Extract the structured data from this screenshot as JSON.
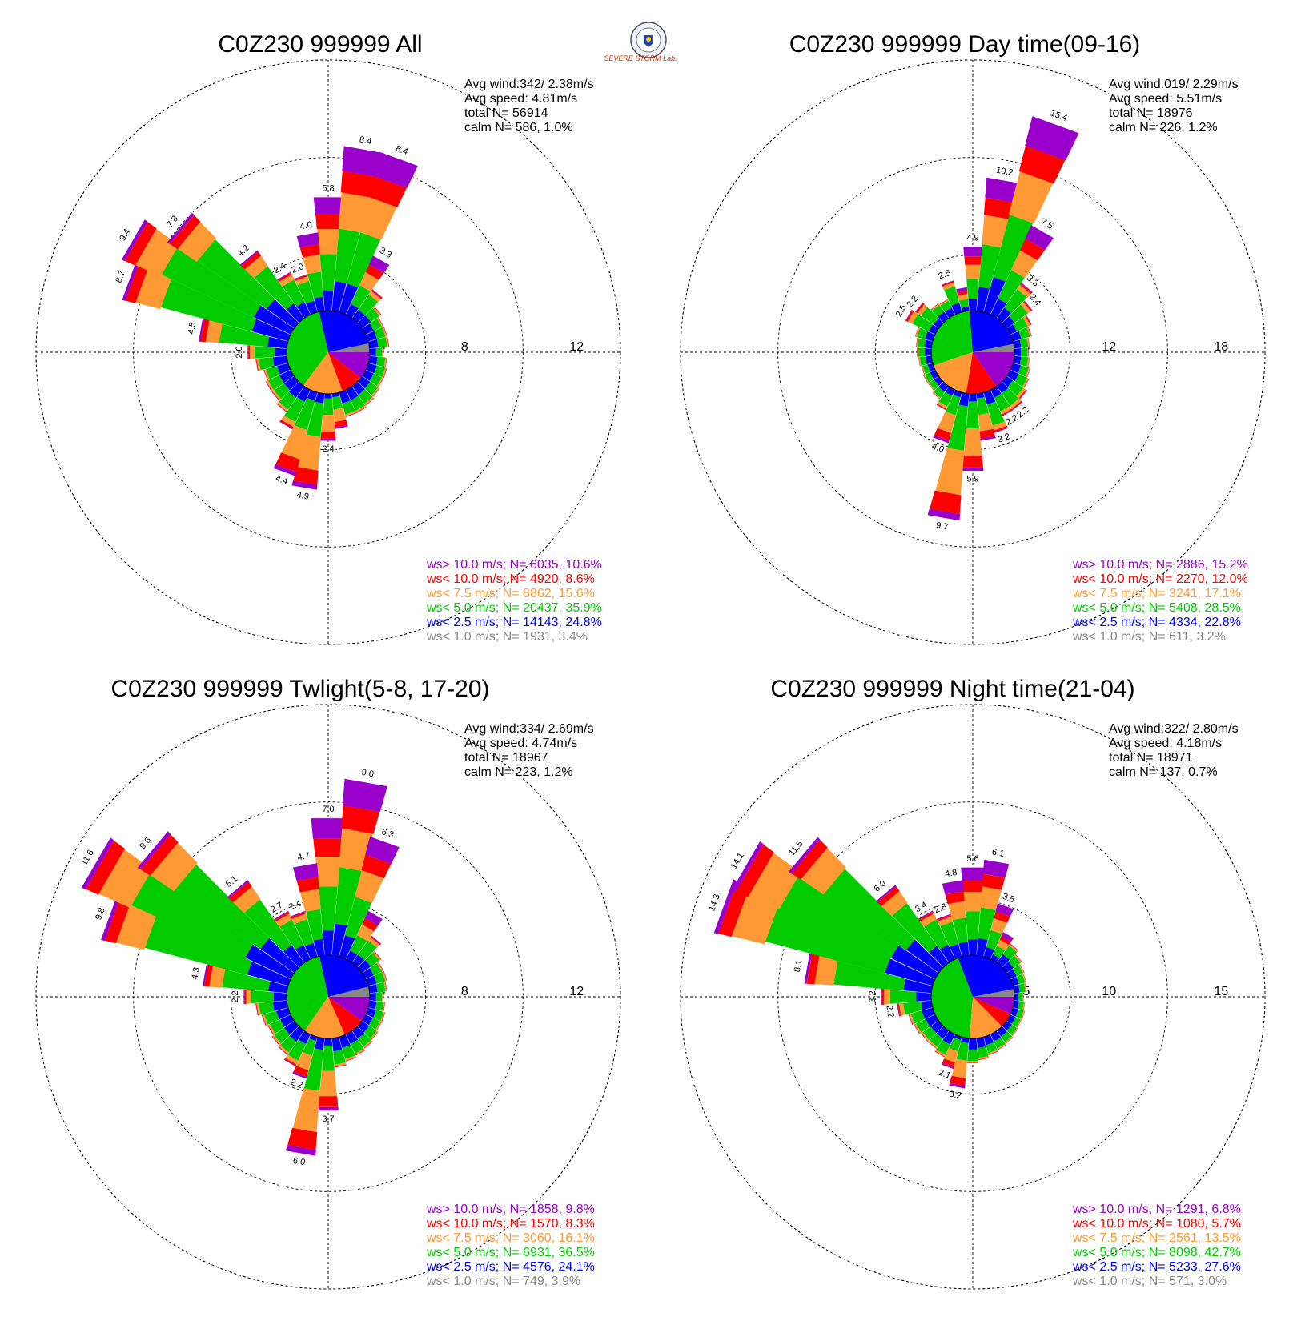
{
  "logo": {
    "name": "severe-storm-lab-logo",
    "text": "SEVERE STORM Lab."
  },
  "colors": {
    "gt10": "#9900cc",
    "lt10": "#ff0000",
    "lt75": "#ff9933",
    "lt5": "#00cc00",
    "lt25": "#0000ff",
    "lt1": "#888888"
  },
  "chart_data": [
    {
      "type": "windrose",
      "title": "C0Z230 999999 All",
      "stats": [
        "Avg wind:342/ 2.38m/s",
        "Avg speed: 4.81m/s",
        "total N=       56914",
        "calm N=    586,   1.0%"
      ],
      "ring_ticks": [
        "4",
        "8",
        "12"
      ],
      "rmax": 12,
      "legend": [
        {
          "text": "ws> 10.0 m/s; N=  6035, 10.6%",
          "color": "#9900cc"
        },
        {
          "text": "ws< 10.0 m/s; N=  4920,  8.6%",
          "color": "#ff0000"
        },
        {
          "text": "ws<  7.5 m/s; N=  8862, 15.6%",
          "color": "#ff9933"
        },
        {
          "text": "ws<  5.0 m/s; N= 20437, 35.9%",
          "color": "#00cc00"
        },
        {
          "text": "ws<  2.5 m/s; N= 14143, 24.8%",
          "color": "#0000ff"
        },
        {
          "text": "ws<  1.0 m/s; N=  1931,  3.4%",
          "color": "#888888"
        }
      ],
      "pie": [
        3.4,
        24.8,
        35.9,
        15.6,
        8.6,
        10.6
      ],
      "directions": [
        0,
        10,
        20,
        30,
        40,
        50,
        60,
        70,
        80,
        90,
        100,
        110,
        120,
        130,
        140,
        150,
        160,
        170,
        180,
        190,
        200,
        210,
        220,
        230,
        240,
        250,
        260,
        270,
        280,
        290,
        300,
        310,
        320,
        330,
        340,
        350
      ],
      "totals": [
        5.8,
        8.4,
        8.4,
        3.3,
        1.8,
        1.2,
        1.0,
        1.0,
        1.0,
        0.7,
        0.9,
        1.0,
        1.0,
        1.1,
        1.2,
        1.3,
        1.3,
        1.8,
        2.4,
        4.9,
        4.4,
        2.2,
        1.6,
        1.4,
        1.4,
        1.3,
        1.6,
        2.0,
        4.5,
        8.7,
        9.4,
        7.8,
        4.2,
        2.4,
        2.0,
        4.0
      ],
      "labels": [
        "5.8",
        "8.4",
        "8.4",
        "3.3",
        "",
        "",
        "",
        "",
        "",
        "",
        "",
        "",
        "",
        "",
        "",
        "",
        "",
        "",
        "2.4",
        "4.9",
        "4.4",
        "",
        "",
        "",
        "",
        "",
        "",
        "2.0",
        "4.5",
        "8.7",
        "9.4",
        "7.8",
        "4.2",
        "2.4",
        "2.0",
        "4.0"
      ]
    },
    {
      "type": "windrose",
      "title": "C0Z230 999999 Day time(09-16)",
      "stats": [
        "Avg wind:019/ 2.29m/s",
        "Avg speed: 5.51m/s",
        "total N=       18976",
        "calm N=    226,   1.2%"
      ],
      "ring_ticks": [
        "6",
        "12",
        "18"
      ],
      "rmax": 18,
      "legend": [
        {
          "text": "ws> 10.0 m/s; N=  2886, 15.2%",
          "color": "#9900cc"
        },
        {
          "text": "ws< 10.0 m/s; N=  2270, 12.0%",
          "color": "#ff0000"
        },
        {
          "text": "ws<  7.5 m/s; N=  3241, 17.1%",
          "color": "#ff9933"
        },
        {
          "text": "ws<  5.0 m/s; N=  5408, 28.5%",
          "color": "#00cc00"
        },
        {
          "text": "ws<  2.5 m/s; N=  4334, 22.8%",
          "color": "#0000ff"
        },
        {
          "text": "ws<  1.0 m/s; N=   611,  3.2%",
          "color": "#888888"
        }
      ],
      "pie": [
        3.2,
        22.8,
        28.5,
        17.1,
        12.0,
        15.2
      ],
      "directions": [
        0,
        10,
        20,
        30,
        40,
        50,
        60,
        70,
        80,
        90,
        100,
        110,
        120,
        130,
        140,
        150,
        160,
        170,
        180,
        190,
        200,
        210,
        220,
        230,
        240,
        250,
        260,
        270,
        280,
        290,
        300,
        310,
        320,
        330,
        340,
        350
      ],
      "totals": [
        4.9,
        10.2,
        15.4,
        7.5,
        3.3,
        2.4,
        1.8,
        1.5,
        1.2,
        1.1,
        1.2,
        1.4,
        1.6,
        1.9,
        2.2,
        2.2,
        3.2,
        3.6,
        5.9,
        9.7,
        4.0,
        1.7,
        1.2,
        1.0,
        1.0,
        0.9,
        1.0,
        1.1,
        1.2,
        1.4,
        2.5,
        2.2,
        1.4,
        1.3,
        2.5,
        1.8
      ],
      "labels": [
        "4.9",
        "10.2",
        "15.4",
        "7.5",
        "3.3",
        "2.4",
        "",
        "",
        "",
        "",
        "",
        "",
        "",
        "",
        "2.2",
        "2.2",
        "3.2",
        "",
        "5.9",
        "9.7",
        "4.0",
        "",
        "",
        "",
        "",
        "",
        "",
        "",
        "",
        "",
        "2.5",
        "2.2",
        "",
        "",
        "2.5",
        ""
      ]
    },
    {
      "type": "windrose",
      "title": "C0Z230 999999 Twlight(5-8, 17-20)",
      "stats": [
        "Avg wind:334/ 2.69m/s",
        "Avg speed: 4.74m/s",
        "total N=       18967",
        "calm N=    223,   1.2%"
      ],
      "ring_ticks": [
        "4",
        "8",
        "12"
      ],
      "rmax": 12,
      "legend": [
        {
          "text": "ws> 10.0 m/s; N=  1858,  9.8%",
          "color": "#9900cc"
        },
        {
          "text": "ws< 10.0 m/s; N=  1570,  8.3%",
          "color": "#ff0000"
        },
        {
          "text": "ws<  7.5 m/s; N=  3060, 16.1%",
          "color": "#ff9933"
        },
        {
          "text": "ws<  5.0 m/s; N=  6931, 36.5%",
          "color": "#00cc00"
        },
        {
          "text": "ws<  2.5 m/s; N=  4576, 24.1%",
          "color": "#0000ff"
        },
        {
          "text": "ws<  1.0 m/s; N=   749,  3.9%",
          "color": "#888888"
        }
      ],
      "pie": [
        3.9,
        24.1,
        36.5,
        16.1,
        8.3,
        9.8
      ],
      "directions": [
        0,
        10,
        20,
        30,
        40,
        50,
        60,
        70,
        80,
        90,
        100,
        110,
        120,
        130,
        140,
        150,
        160,
        170,
        180,
        190,
        200,
        210,
        220,
        230,
        240,
        250,
        260,
        270,
        280,
        290,
        300,
        310,
        320,
        330,
        340,
        350
      ],
      "totals": [
        7.0,
        9.0,
        6.3,
        2.7,
        1.7,
        1.2,
        1.0,
        1.0,
        0.9,
        0.7,
        0.8,
        0.9,
        0.9,
        1.0,
        1.1,
        1.2,
        1.3,
        1.5,
        3.7,
        6.0,
        2.2,
        1.8,
        1.5,
        1.4,
        1.3,
        1.4,
        1.6,
        2.2,
        4.3,
        9.8,
        11.6,
        9.6,
        5.1,
        2.7,
        2.4,
        4.7
      ],
      "labels": [
        "7.0",
        "9.0",
        "6.3",
        "",
        "",
        "",
        "",
        "",
        "",
        "",
        "",
        "",
        "",
        "",
        "",
        "",
        "",
        "",
        "3.7",
        "6.0",
        "2.2",
        "",
        "",
        "",
        "",
        "",
        "",
        "2.2",
        "4.3",
        "9.8",
        "11.6",
        "9.6",
        "5.1",
        "2.7",
        "2.4",
        "4.7"
      ]
    },
    {
      "type": "windrose",
      "title": "C0Z230 999999 Night time(21-04)",
      "stats": [
        "Avg wind:322/ 2.80m/s",
        "Avg speed: 4.18m/s",
        "total N=       18971",
        "calm N=    137,   0.7%"
      ],
      "ring_ticks": [
        "5",
        "10",
        "15"
      ],
      "rmax": 15,
      "legend": [
        {
          "text": "ws> 10.0 m/s; N=  1291,  6.8%",
          "color": "#9900cc"
        },
        {
          "text": "ws< 10.0 m/s; N=  1080,  5.7%",
          "color": "#ff0000"
        },
        {
          "text": "ws<  7.5 m/s; N=  2561, 13.5%",
          "color": "#ff9933"
        },
        {
          "text": "ws<  5.0 m/s; N=  8098, 42.7%",
          "color": "#00cc00"
        },
        {
          "text": "ws<  2.5 m/s; N=  5233, 27.6%",
          "color": "#0000ff"
        },
        {
          "text": "ws<  1.0 m/s; N=   571,  3.0%",
          "color": "#888888"
        }
      ],
      "pie": [
        3.0,
        27.6,
        42.7,
        13.5,
        5.7,
        6.8
      ],
      "directions": [
        0,
        10,
        20,
        30,
        40,
        50,
        60,
        70,
        80,
        90,
        100,
        110,
        120,
        130,
        140,
        150,
        160,
        170,
        180,
        190,
        200,
        210,
        220,
        230,
        240,
        250,
        260,
        270,
        280,
        290,
        300,
        310,
        320,
        330,
        340,
        350
      ],
      "totals": [
        5.6,
        6.1,
        3.5,
        1.9,
        1.5,
        1.2,
        1.0,
        0.9,
        0.8,
        0.6,
        0.7,
        0.8,
        0.8,
        0.9,
        1.0,
        1.1,
        1.2,
        1.4,
        1.6,
        3.2,
        2.1,
        1.6,
        1.4,
        1.4,
        1.5,
        1.6,
        2.2,
        3.2,
        8.1,
        14.3,
        14.1,
        11.5,
        6.0,
        3.4,
        2.8,
        4.8
      ],
      "labels": [
        "5.6",
        "6.1",
        "3.5",
        "",
        "",
        "",
        "",
        "",
        "",
        "",
        "",
        "",
        "",
        "",
        "",
        "",
        "",
        "",
        "",
        "3.2",
        "2.1",
        "",
        "",
        "",
        "",
        "",
        "2.2",
        "3.2",
        "8.1",
        "14.3",
        "14.1",
        "11.5",
        "6.0",
        "3.4",
        "2.8",
        "4.8"
      ]
    }
  ]
}
